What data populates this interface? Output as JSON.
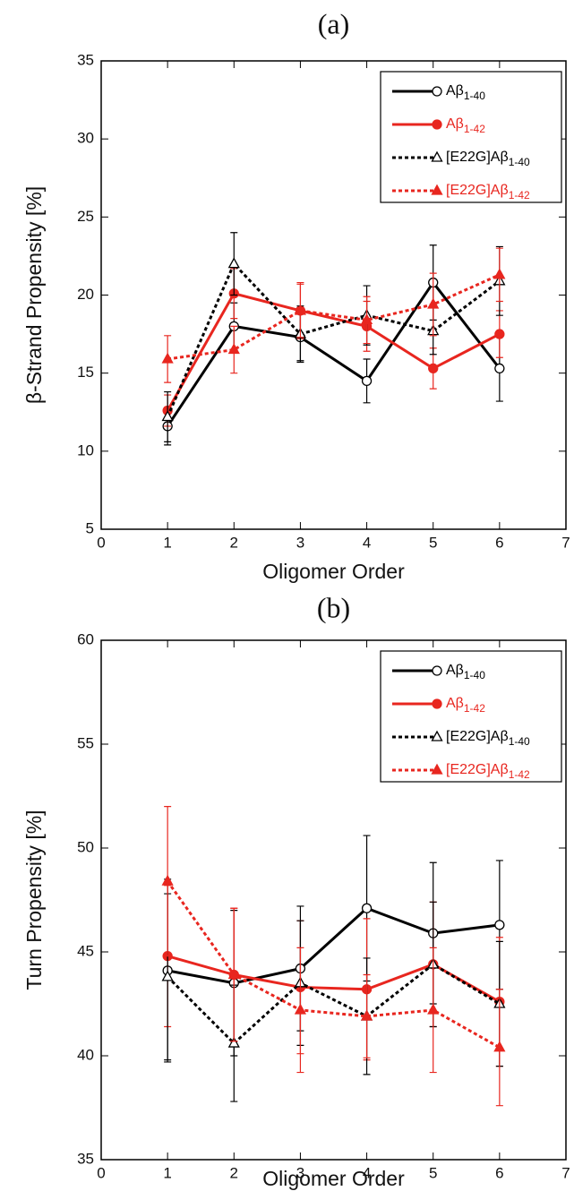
{
  "chart_data": [
    {
      "type": "line",
      "title": "(a)",
      "x_label": "Oligomer Order",
      "y_label": "β-Strand Propensity [%]",
      "x": [
        1,
        2,
        3,
        4,
        5,
        6
      ],
      "xlim": [
        0,
        7
      ],
      "xticks": [
        0,
        1,
        2,
        3,
        4,
        5,
        6,
        7
      ],
      "ylim": [
        5,
        35
      ],
      "yticks": [
        5,
        10,
        15,
        20,
        25,
        30,
        35
      ],
      "legend": "upper right",
      "series": [
        {
          "name": "Aβ1-40",
          "color": "#000000",
          "dashed": false,
          "marker": "circle",
          "filled": false,
          "values": [
            11.6,
            18.0,
            17.3,
            14.5,
            20.8,
            15.3
          ],
          "errors": [
            1.2,
            1.5,
            1.5,
            1.4,
            2.4,
            2.1
          ]
        },
        {
          "name": "Aβ1-42",
          "color": "#e8261f",
          "dashed": false,
          "marker": "circle",
          "filled": true,
          "values": [
            12.6,
            20.1,
            19.0,
            18.0,
            15.3,
            17.5
          ],
          "errors": [
            1.0,
            1.6,
            1.8,
            1.6,
            1.3,
            1.5
          ]
        },
        {
          "name": "[E22G]Aβ1-40",
          "color": "#000000",
          "dashed": true,
          "marker": "triangle",
          "filled": false,
          "values": [
            12.2,
            22.0,
            17.5,
            18.7,
            17.7,
            20.9
          ],
          "errors": [
            1.6,
            2.0,
            1.8,
            1.9,
            1.5,
            2.2
          ]
        },
        {
          "name": "[E22G]Aβ1-42",
          "color": "#e8261f",
          "dashed": true,
          "marker": "triangle",
          "filled": true,
          "values": [
            15.9,
            16.5,
            19.0,
            18.4,
            19.4,
            21.3
          ],
          "errors": [
            1.5,
            1.5,
            1.7,
            1.5,
            2.0,
            1.7
          ]
        }
      ]
    },
    {
      "type": "line",
      "title": "(b)",
      "x_label": "Oligomer Order",
      "y_label": "Turn Propensity [%]",
      "x": [
        1,
        2,
        3,
        4,
        5,
        6
      ],
      "xlim": [
        0,
        7
      ],
      "xticks": [
        0,
        1,
        2,
        3,
        4,
        5,
        6,
        7
      ],
      "ylim": [
        35,
        60
      ],
      "yticks": [
        35,
        40,
        45,
        50,
        55,
        60
      ],
      "legend": "upper right",
      "series": [
        {
          "name": "Aβ1-40",
          "color": "#000000",
          "dashed": false,
          "marker": "circle",
          "filled": false,
          "values": [
            44.1,
            43.5,
            44.2,
            47.1,
            45.9,
            46.3
          ],
          "errors": [
            4.4,
            3.5,
            3.0,
            3.5,
            3.4,
            3.1
          ]
        },
        {
          "name": "Aβ1-42",
          "color": "#e8261f",
          "dashed": false,
          "marker": "circle",
          "filled": true,
          "values": [
            44.8,
            43.9,
            43.3,
            43.2,
            44.4,
            42.6
          ],
          "errors": [
            3.4,
            3.2,
            3.2,
            3.4,
            3.0,
            3.1
          ]
        },
        {
          "name": "[E22G]Aβ1-40",
          "color": "#000000",
          "dashed": true,
          "marker": "triangle",
          "filled": false,
          "values": [
            43.8,
            40.6,
            43.5,
            41.9,
            44.4,
            42.5
          ],
          "errors": [
            4.0,
            2.8,
            3.0,
            2.8,
            3.0,
            3.0
          ]
        },
        {
          "name": "[E22G]Aβ1-42",
          "color": "#e8261f",
          "dashed": true,
          "marker": "triangle",
          "filled": true,
          "values": [
            48.4,
            43.9,
            42.2,
            41.9,
            42.2,
            40.4
          ],
          "errors": [
            3.6,
            3.2,
            3.0,
            2.0,
            3.0,
            2.8
          ]
        }
      ]
    }
  ]
}
